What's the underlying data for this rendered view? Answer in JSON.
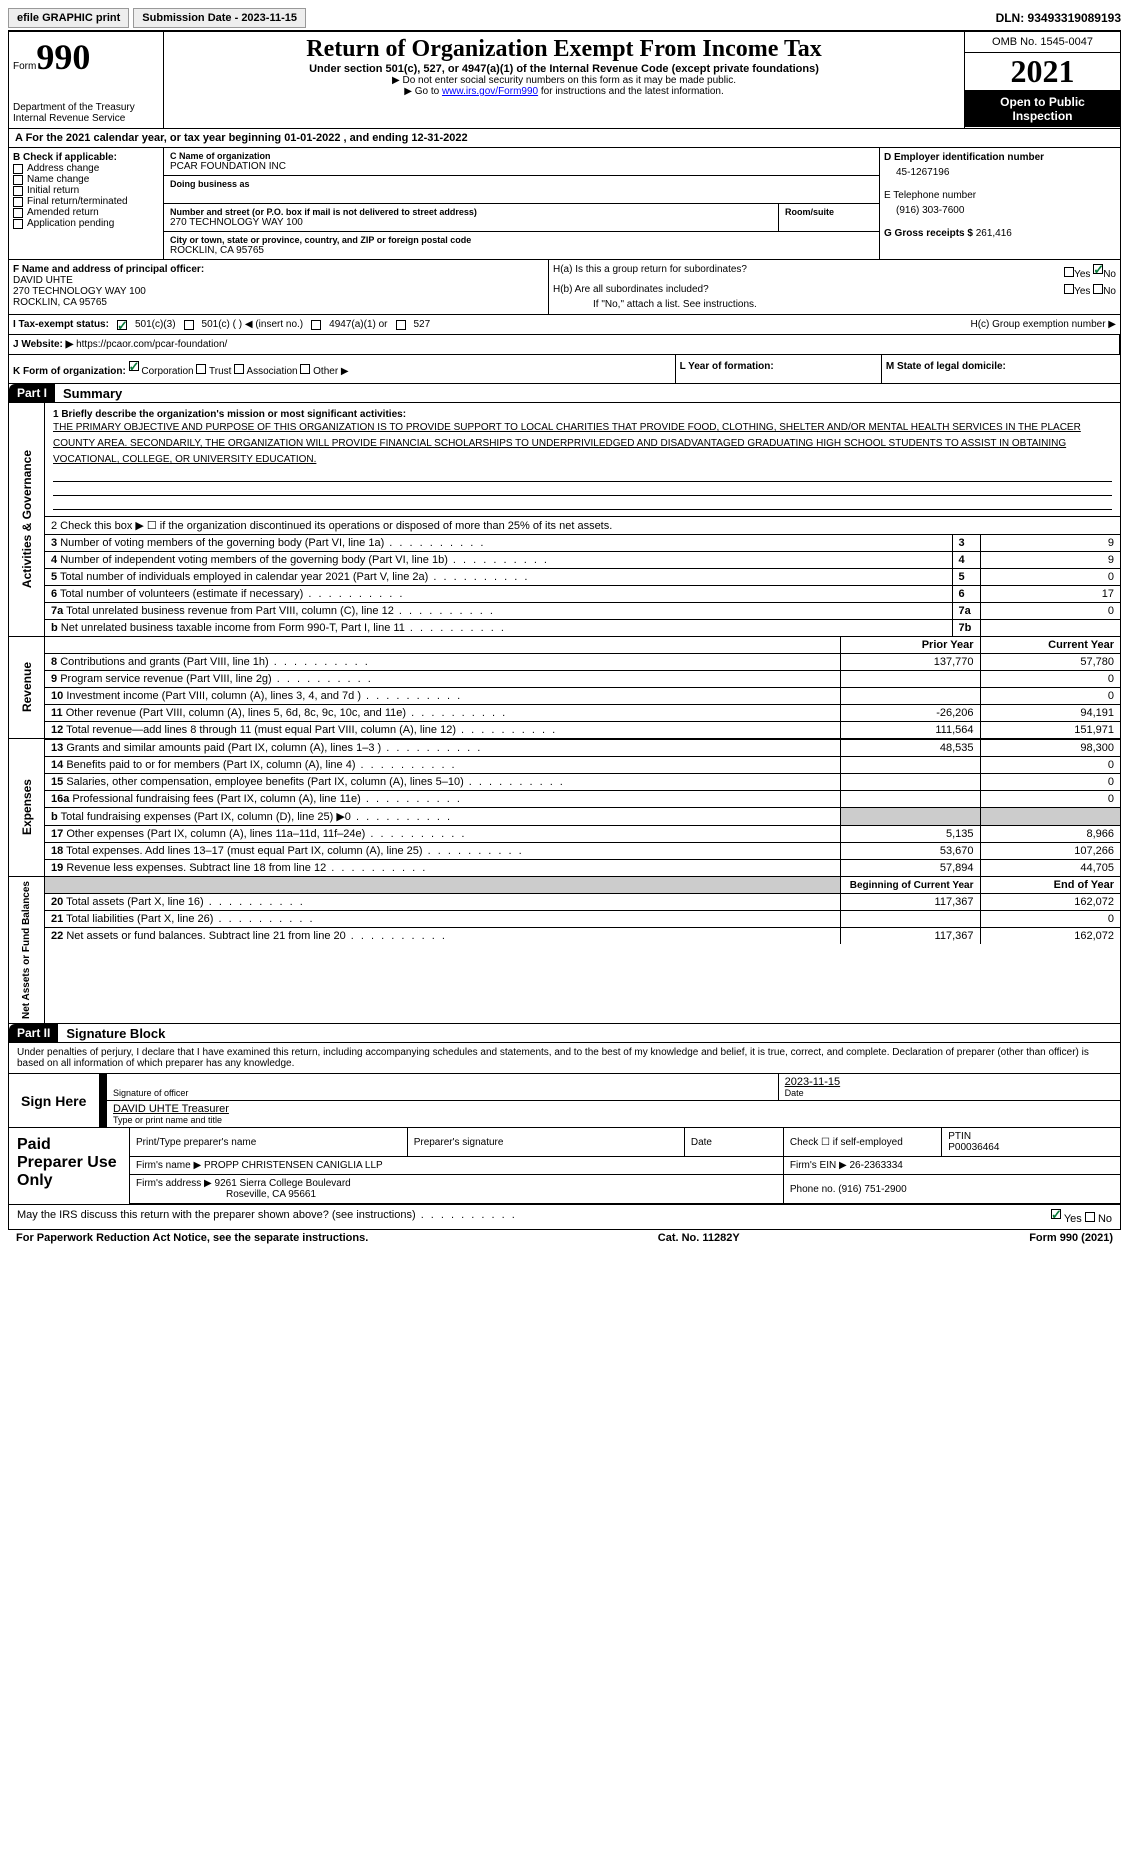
{
  "top": {
    "efile": "efile GRAPHIC print",
    "sub_date_label": "Submission Date - 2023-11-15",
    "dln": "DLN: 93493319089193"
  },
  "header": {
    "form_word": "Form",
    "form_num": "990",
    "dept": "Department of the Treasury",
    "irs": "Internal Revenue Service",
    "title": "Return of Organization Exempt From Income Tax",
    "sub1": "Under section 501(c), 527, or 4947(a)(1) of the Internal Revenue Code (except private foundations)",
    "sub2": "▶ Do not enter social security numbers on this form as it may be made public.",
    "sub3_pre": "▶ Go to ",
    "sub3_link": "www.irs.gov/Form990",
    "sub3_post": " for instructions and the latest information.",
    "omb": "OMB No. 1545-0047",
    "year": "2021",
    "open": "Open to Public Inspection"
  },
  "row_a": "A For the 2021 calendar year, or tax year beginning 01-01-2022    , and ending 12-31-2022",
  "b": {
    "label": "B Check if applicable:",
    "items": [
      "Address change",
      "Name change",
      "Initial return",
      "Final return/terminated",
      "Amended return",
      "Application pending"
    ]
  },
  "c": {
    "name_label": "C Name of organization",
    "name": "PCAR FOUNDATION INC",
    "dba_label": "Doing business as",
    "addr_label": "Number and street (or P.O. box if mail is not delivered to street address)",
    "room_label": "Room/suite",
    "addr": "270 TECHNOLOGY WAY 100",
    "city_label": "City or town, state or province, country, and ZIP or foreign postal code",
    "city": "ROCKLIN, CA  95765"
  },
  "d": {
    "label": "D Employer identification number",
    "val": "45-1267196"
  },
  "e": {
    "label": "E Telephone number",
    "val": "(916) 303-7600"
  },
  "g": {
    "label": "G Gross receipts $",
    "val": "261,416"
  },
  "f": {
    "label": "F  Name and address of principal officer:",
    "name": "DAVID UHTE",
    "addr1": "270 TECHNOLOGY WAY 100",
    "addr2": "ROCKLIN, CA  95765"
  },
  "h": {
    "a": "H(a)  Is this a group return for subordinates?",
    "b": "H(b)  Are all subordinates included?",
    "b_note": "If \"No,\" attach a list. See instructions.",
    "c": "H(c)  Group exemption number ▶",
    "yes": "Yes",
    "no": "No"
  },
  "i": {
    "label": "I   Tax-exempt status:",
    "o1": "501(c)(3)",
    "o2": "501(c) (   ) ◀ (insert no.)",
    "o3": "4947(a)(1) or",
    "o4": "527"
  },
  "j": {
    "label": "J   Website: ▶",
    "val": "https://pcaor.com/pcar-foundation/"
  },
  "k": {
    "label": "K Form of organization:",
    "o1": "Corporation",
    "o2": "Trust",
    "o3": "Association",
    "o4": "Other ▶"
  },
  "l": {
    "label": "L Year of formation:"
  },
  "m": {
    "label": "M State of legal domicile:"
  },
  "part1": {
    "hdr": "Part I",
    "title": "Summary",
    "side_gov": "Activities & Governance",
    "side_rev": "Revenue",
    "side_exp": "Expenses",
    "side_net": "Net Assets or Fund Balances",
    "q1_label": "1  Briefly describe the organization's mission or most significant activities:",
    "q1_text": "THE PRIMARY OBJECTIVE AND PURPOSE OF THIS ORGANIZATION IS TO PROVIDE SUPPORT TO LOCAL CHARITIES THAT PROVIDE FOOD, CLOTHING, SHELTER AND/OR MENTAL HEALTH SERVICES IN THE PLACER COUNTY AREA. SECONDARILY, THE ORGANIZATION WILL PROVIDE FINANCIAL SCHOLARSHIPS TO UNDERPRIVILEDGED AND DISADVANTAGED GRADUATING HIGH SCHOOL STUDENTS TO ASSIST IN OBTAINING VOCATIONAL, COLLEGE, OR UNIVERSITY EDUCATION.",
    "q2": "2   Check this box ▶ ☐  if the organization discontinued its operations or disposed of more than 25% of its net assets.",
    "rows_gov": [
      {
        "n": "3",
        "t": "Number of voting members of the governing body (Part VI, line 1a)",
        "rn": "3",
        "v": "9"
      },
      {
        "n": "4",
        "t": "Number of independent voting members of the governing body (Part VI, line 1b)",
        "rn": "4",
        "v": "9"
      },
      {
        "n": "5",
        "t": "Total number of individuals employed in calendar year 2021 (Part V, line 2a)",
        "rn": "5",
        "v": "0"
      },
      {
        "n": "6",
        "t": "Total number of volunteers (estimate if necessary)",
        "rn": "6",
        "v": "17"
      },
      {
        "n": "7a",
        "t": "Total unrelated business revenue from Part VIII, column (C), line 12",
        "rn": "7a",
        "v": "0"
      },
      {
        "n": "b",
        "t": "Net unrelated business taxable income from Form 990-T, Part I, line 11",
        "rn": "7b",
        "v": ""
      }
    ],
    "hdr_prior": "Prior Year",
    "hdr_curr": "Current Year",
    "rows_rev": [
      {
        "n": "8",
        "t": "Contributions and grants (Part VIII, line 1h)",
        "p": "137,770",
        "c": "57,780"
      },
      {
        "n": "9",
        "t": "Program service revenue (Part VIII, line 2g)",
        "p": "",
        "c": "0"
      },
      {
        "n": "10",
        "t": "Investment income (Part VIII, column (A), lines 3, 4, and 7d )",
        "p": "",
        "c": "0"
      },
      {
        "n": "11",
        "t": "Other revenue (Part VIII, column (A), lines 5, 6d, 8c, 9c, 10c, and 11e)",
        "p": "-26,206",
        "c": "94,191"
      },
      {
        "n": "12",
        "t": "Total revenue—add lines 8 through 11 (must equal Part VIII, column (A), line 12)",
        "p": "111,564",
        "c": "151,971"
      }
    ],
    "rows_exp": [
      {
        "n": "13",
        "t": "Grants and similar amounts paid (Part IX, column (A), lines 1–3 )",
        "p": "48,535",
        "c": "98,300"
      },
      {
        "n": "14",
        "t": "Benefits paid to or for members (Part IX, column (A), line 4)",
        "p": "",
        "c": "0"
      },
      {
        "n": "15",
        "t": "Salaries, other compensation, employee benefits (Part IX, column (A), lines 5–10)",
        "p": "",
        "c": "0"
      },
      {
        "n": "16a",
        "t": "Professional fundraising fees (Part IX, column (A), line 11e)",
        "p": "",
        "c": "0"
      },
      {
        "n": "b",
        "t": "Total fundraising expenses (Part IX, column (D), line 25) ▶0",
        "p": "shade",
        "c": "shade"
      },
      {
        "n": "17",
        "t": "Other expenses (Part IX, column (A), lines 11a–11d, 11f–24e)",
        "p": "5,135",
        "c": "8,966"
      },
      {
        "n": "18",
        "t": "Total expenses. Add lines 13–17 (must equal Part IX, column (A), line 25)",
        "p": "53,670",
        "c": "107,266"
      },
      {
        "n": "19",
        "t": "Revenue less expenses. Subtract line 18 from line 12",
        "p": "57,894",
        "c": "44,705"
      }
    ],
    "hdr_beg": "Beginning of Current Year",
    "hdr_end": "End of Year",
    "rows_net": [
      {
        "n": "20",
        "t": "Total assets (Part X, line 16)",
        "p": "117,367",
        "c": "162,072"
      },
      {
        "n": "21",
        "t": "Total liabilities (Part X, line 26)",
        "p": "",
        "c": "0"
      },
      {
        "n": "22",
        "t": "Net assets or fund balances. Subtract line 21 from line 20",
        "p": "117,367",
        "c": "162,072"
      }
    ]
  },
  "part2": {
    "hdr": "Part II",
    "title": "Signature Block",
    "decl": "Under penalties of perjury, I declare that I have examined this return, including accompanying schedules and statements, and to the best of my knowledge and belief, it is true, correct, and complete. Declaration of preparer (other than officer) is based on all information of which preparer has any knowledge.",
    "sign_here": "Sign Here",
    "sig_officer": "Signature of officer",
    "date": "Date",
    "sig_date": "2023-11-15",
    "name_title": "DAVID UHTE  Treasurer",
    "type_name": "Type or print name and title",
    "paid": "Paid Preparer Use Only",
    "pt_name": "Print/Type preparer's name",
    "pt_sig": "Preparer's signature",
    "pt_date": "Date",
    "pt_check": "Check ☐ if self-employed",
    "ptin_label": "PTIN",
    "ptin": "P00036464",
    "firm_name_label": "Firm's name    ▶",
    "firm_name": "PROPP CHRISTENSEN CANIGLIA LLP",
    "firm_ein_label": "Firm's EIN ▶",
    "firm_ein": "26-2363334",
    "firm_addr_label": "Firm's address ▶",
    "firm_addr": "9261 Sierra College Boulevard",
    "firm_city": "Roseville, CA  95661",
    "phone_label": "Phone no.",
    "phone": "(916) 751-2900",
    "may_irs": "May the IRS discuss this return with the preparer shown above? (see instructions)",
    "yes": "Yes",
    "no": "No"
  },
  "footer": {
    "pra": "For Paperwork Reduction Act Notice, see the separate instructions.",
    "cat": "Cat. No. 11282Y",
    "form": "Form 990 (2021)"
  }
}
